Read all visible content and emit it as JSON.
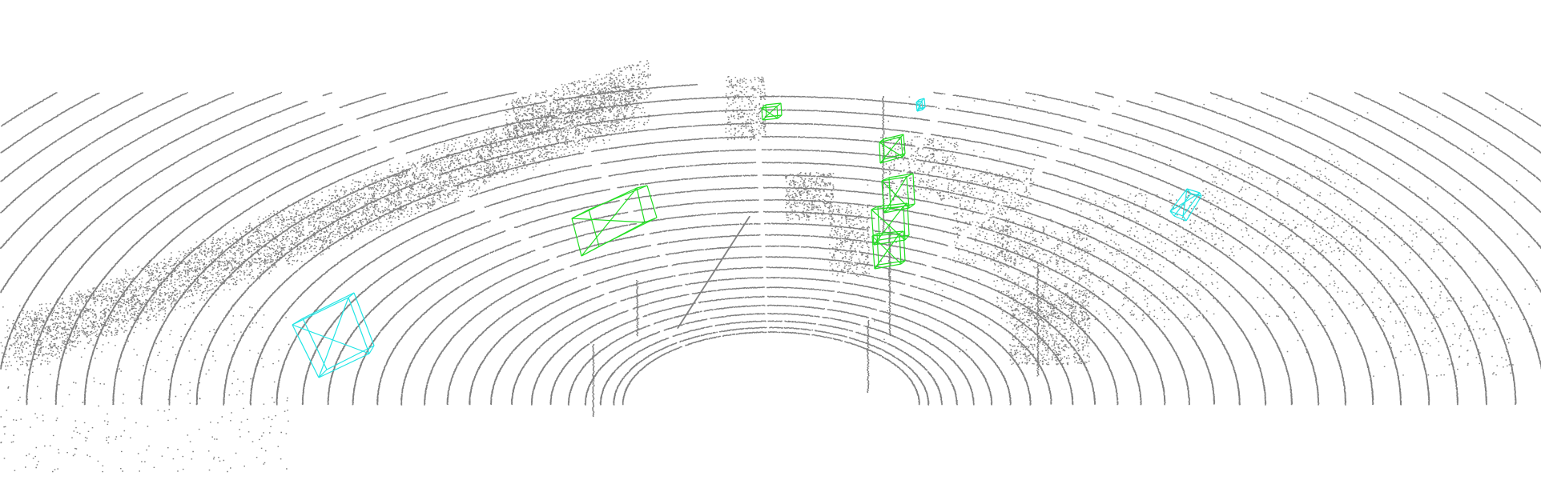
{
  "scene": {
    "background_color": "#ffffff",
    "point_color": "#7f7f7f",
    "box_colors": {
      "green": "#22dd22",
      "cyan": "#22e5e5"
    },
    "object_count": {
      "green_boxes": 6,
      "cyan_boxes": 3
    }
  }
}
